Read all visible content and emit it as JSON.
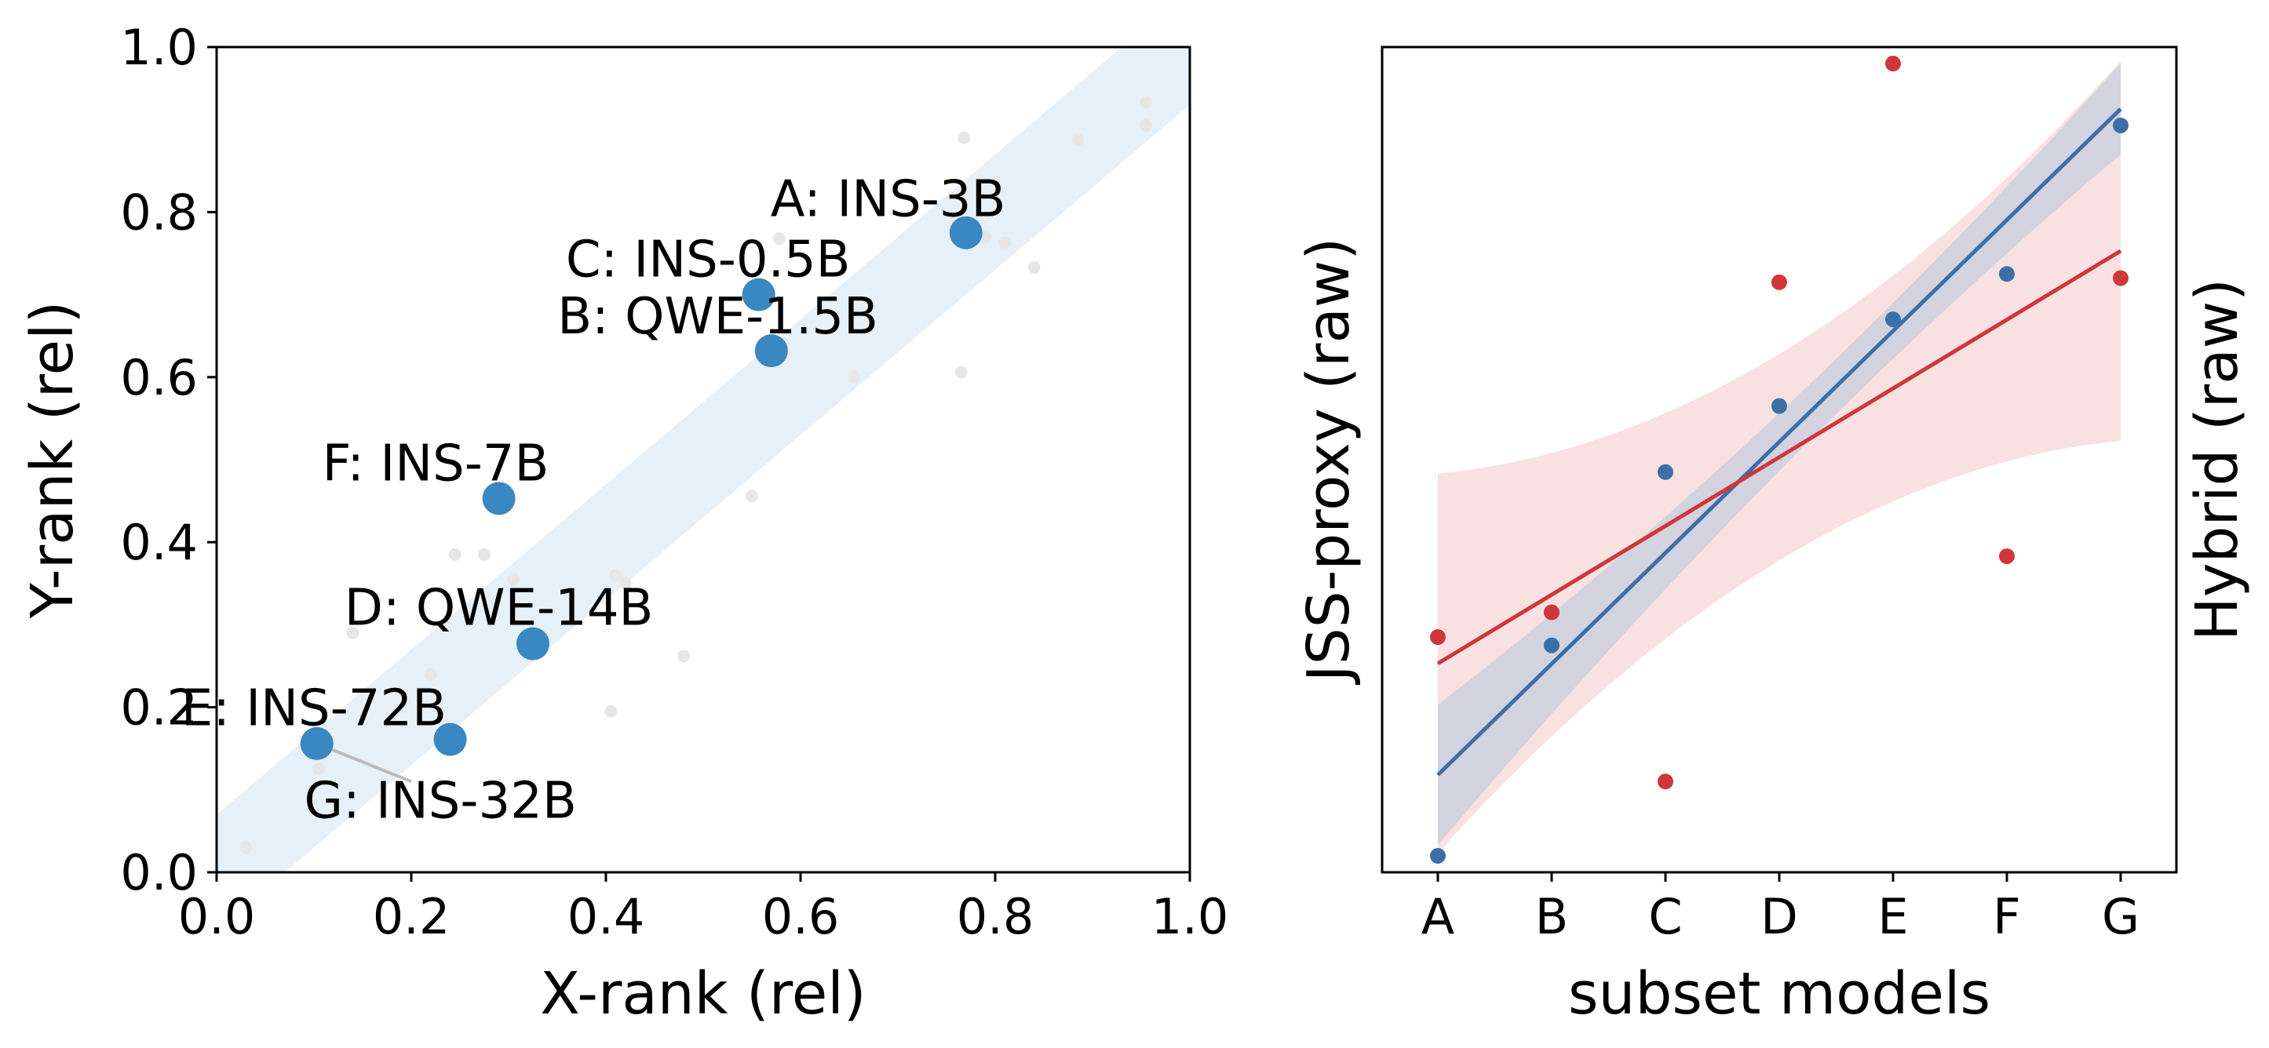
{
  "chart_data": [
    {
      "type": "scatter",
      "xlabel": "X-rank (rel)",
      "ylabel": "Y-rank (rel)",
      "xlim": [
        0.0,
        1.0
      ],
      "ylim": [
        0.0,
        1.0
      ],
      "xticks": [
        "0.0",
        "0.2",
        "0.4",
        "0.6",
        "0.8",
        "1.0"
      ],
      "yticks": [
        "0.0",
        "0.2",
        "0.4",
        "0.6",
        "0.8",
        "1.0"
      ],
      "grid": false,
      "band": {
        "description": "diagonal band y = x ± 0.07",
        "color": "#dce9f5"
      },
      "highlight_color": "#3a87c2",
      "background_color": "#e6e6e6",
      "highlighted": [
        {
          "label": "A: INS-3B",
          "x": 0.77,
          "y": 0.775
        },
        {
          "label": "B: QWE-1.5B",
          "x": 0.57,
          "y": 0.632
        },
        {
          "label": "C: INS-0.5B",
          "x": 0.557,
          "y": 0.7
        },
        {
          "label": "D: QWE-14B",
          "x": 0.325,
          "y": 0.277
        },
        {
          "label": "E: INS-72B",
          "x": 0.103,
          "y": 0.156
        },
        {
          "label": "F: INS-7B",
          "x": 0.29,
          "y": 0.453
        },
        {
          "label": "G: INS-32B",
          "x": 0.24,
          "y": 0.161
        }
      ],
      "background_points": [
        [
          0.03,
          0.03
        ],
        [
          0.105,
          0.125
        ],
        [
          0.14,
          0.29
        ],
        [
          0.22,
          0.24
        ],
        [
          0.245,
          0.385
        ],
        [
          0.275,
          0.385
        ],
        [
          0.305,
          0.355
        ],
        [
          0.41,
          0.36
        ],
        [
          0.42,
          0.35
        ],
        [
          0.405,
          0.195
        ],
        [
          0.48,
          0.262
        ],
        [
          0.55,
          0.456
        ],
        [
          0.578,
          0.768
        ],
        [
          0.655,
          0.6
        ],
        [
          0.765,
          0.606
        ],
        [
          0.768,
          0.89
        ],
        [
          0.79,
          0.77
        ],
        [
          0.81,
          0.763
        ],
        [
          0.84,
          0.733
        ],
        [
          0.885,
          0.888
        ],
        [
          0.955,
          0.933
        ],
        [
          0.955,
          0.905
        ]
      ]
    },
    {
      "type": "scatter",
      "xlabel": "subset models",
      "ylabel": "JSS-proxy (raw)",
      "ylabel_right": "Hybrid (raw)",
      "categories": [
        "A",
        "B",
        "C",
        "D",
        "E",
        "F",
        "G"
      ],
      "y_ticks_shown": false,
      "series": [
        {
          "color": "#3a6fa8",
          "values": [
            0.02,
            0.275,
            0.485,
            0.565,
            0.67,
            0.725,
            0.905
          ],
          "fit": [
            0.118,
            0.925
          ],
          "ci_color": "#b4c6df"
        },
        {
          "color": "#d0363a",
          "values": [
            0.285,
            0.315,
            0.11,
            0.715,
            0.98,
            0.383,
            0.72
          ],
          "fit": [
            0.253,
            0.753
          ],
          "ci_color": "#f8dcdc"
        }
      ]
    }
  ]
}
